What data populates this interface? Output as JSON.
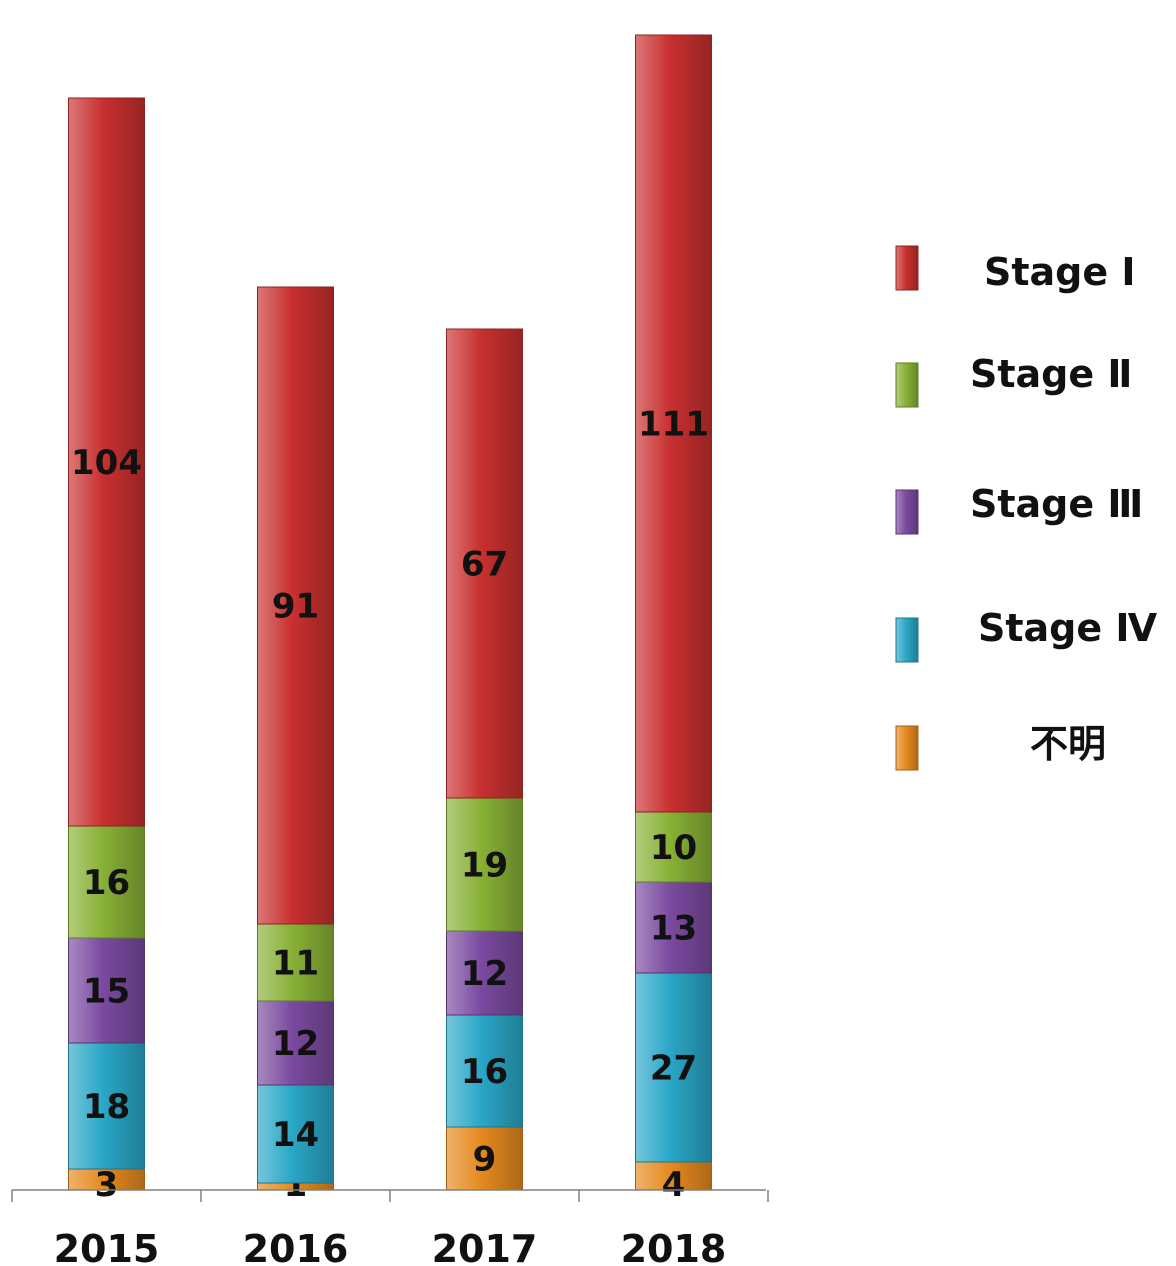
{
  "chart_data": {
    "type": "bar",
    "stacked": true,
    "title": "",
    "xlabel": "",
    "ylabel": "",
    "categories": [
      "2015",
      "2016",
      "2017",
      "2018"
    ],
    "series": [
      {
        "name": "不明",
        "color": "#e58a1f",
        "values": [
          3,
          1,
          9,
          4
        ]
      },
      {
        "name": "Stage  Ⅳ",
        "color": "#2aa7c7",
        "values": [
          18,
          14,
          16,
          27
        ]
      },
      {
        "name": "Stage  Ⅲ",
        "color": "#7a4aa0",
        "values": [
          15,
          12,
          12,
          13
        ]
      },
      {
        "name": "Stage  Ⅱ",
        "color": "#88b136",
        "values": [
          16,
          11,
          19,
          10
        ]
      },
      {
        "name": "Stage  Ⅰ",
        "color": "#c8302f",
        "values": [
          104,
          91,
          67,
          111
        ]
      }
    ],
    "legend": {
      "position": "right",
      "order": [
        "Stage  Ⅰ",
        "Stage  Ⅱ",
        "Stage  Ⅲ",
        "Stage  Ⅳ",
        "不明"
      ]
    },
    "y_axis_visible": false,
    "grid": false,
    "data_labels": true
  }
}
